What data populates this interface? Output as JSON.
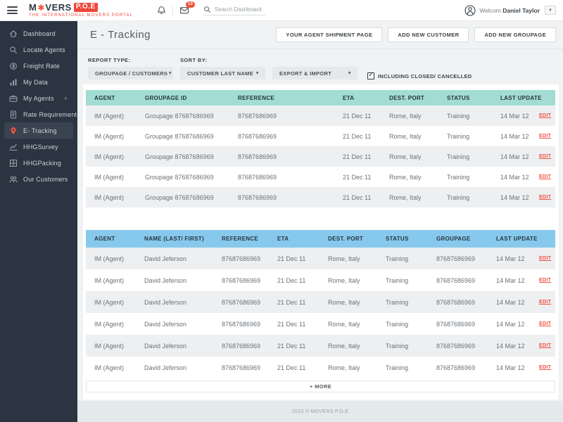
{
  "header": {
    "brand": {
      "part1": "M",
      "part2": "VERS",
      "box": "P.O.E",
      "tagline": "THE INTERNATIONAL MOVERS PORTAL"
    },
    "notifications_badge": "13",
    "search_placeholder": "Search Dashboard",
    "user_greeting": "Welcom",
    "user_name": "Daniel Taylor"
  },
  "sidebar": {
    "items": [
      {
        "label": "Dashboard",
        "icon": "home"
      },
      {
        "label": "Locate Agents",
        "icon": "search"
      },
      {
        "label": "Freight Rate",
        "icon": "coin"
      },
      {
        "label": "My Data",
        "icon": "bar-chart"
      },
      {
        "label": "My Agents",
        "icon": "briefcase",
        "suffix": "+"
      },
      {
        "label": "Rate Requirements",
        "icon": "document"
      },
      {
        "label": "E- Tracking",
        "icon": "map-pin",
        "active": true
      },
      {
        "label": "HHGSurvey",
        "icon": "line-chart"
      },
      {
        "label": "HHGPacking",
        "icon": "package"
      },
      {
        "label": "Our Customers",
        "icon": "people"
      }
    ]
  },
  "page": {
    "title": "E - Tracking",
    "actions": [
      "YOUR AGENT SHIPMENT PAGE",
      "ADD NEW CUSTOMER",
      "ADD NEW GROUPAGE"
    ]
  },
  "filters": {
    "report_type_label": "REPORT TYPE:",
    "report_type_value": "GROUPAGE / CUSTOMERS",
    "sort_by_label": "SORT BY:",
    "sort_by_value": "CUSTOMER LAST NAME",
    "export_import_value": "EXPORT & IMPORT",
    "checkbox_label": "INCLUDING CLOSED/ CANCELLED",
    "checkbox_checked": true
  },
  "groupage_table": {
    "headers": [
      "AGENT",
      "GROUPAGE ID",
      "REFERENCE",
      "ETA",
      "DEST. PORT",
      "STATUS",
      "LAST UPDATE"
    ],
    "edit_label": "EDIT",
    "rows": [
      {
        "agent": "IM (Agent)",
        "groupage_id": "Groupage 87687686969",
        "reference": "87687686969",
        "eta": "21 Dec 11",
        "dest_port": "Rome, Italy",
        "status": "Training",
        "last_update": "14 Mar 12"
      },
      {
        "agent": "IM (Agent)",
        "groupage_id": "Groupage 87687686969",
        "reference": "87687686969",
        "eta": "21 Dec 11",
        "dest_port": "Rome, Italy",
        "status": "Training",
        "last_update": "14 Mar 12"
      },
      {
        "agent": "IM (Agent)",
        "groupage_id": "Groupage 87687686969",
        "reference": "87687686969",
        "eta": "21 Dec 11",
        "dest_port": "Rome, Italy",
        "status": "Training",
        "last_update": "14 Mar 12"
      },
      {
        "agent": "IM (Agent)",
        "groupage_id": "Groupage 87687686969",
        "reference": "87687686969",
        "eta": "21 Dec 11",
        "dest_port": "Rome, Italy",
        "status": "Training",
        "last_update": "14 Mar 12"
      },
      {
        "agent": "IM (Agent)",
        "groupage_id": "Groupage 87687686969",
        "reference": "87687686969",
        "eta": "21 Dec 11",
        "dest_port": "Rome, Italy",
        "status": "Training",
        "last_update": "14 Mar 12"
      }
    ]
  },
  "customer_table": {
    "headers": [
      "AGENT",
      "NAME (LAST/ FIRST)",
      "REFERENCE",
      "ETA",
      "DEST. PORT",
      "STATUS",
      "GROUPAGE",
      "LAST UPDATE"
    ],
    "edit_label": "EDIT",
    "rows": [
      {
        "agent": "IM (Agent)",
        "name": "David Jeferson",
        "reference": "87687686969",
        "eta": "21 Dec 11",
        "dest_port": "Rome, Italy",
        "status": "Training",
        "groupage": "87687686969",
        "last_update": "14 Mar 12"
      },
      {
        "agent": "IM (Agent)",
        "name": "David Jeferson",
        "reference": "87687686969",
        "eta": "21 Dec 11",
        "dest_port": "Rome, Italy",
        "status": "Training",
        "groupage": "87687686969",
        "last_update": "14 Mar 12"
      },
      {
        "agent": "IM (Agent)",
        "name": "David Jeferson",
        "reference": "87687686969",
        "eta": "21 Dec 11",
        "dest_port": "Rome, Italy",
        "status": "Training",
        "groupage": "87687686969",
        "last_update": "14 Mar 12"
      },
      {
        "agent": "IM (Agent)",
        "name": "David Jeferson",
        "reference": "87687686969",
        "eta": "21 Dec 11",
        "dest_port": "Rome, Italy",
        "status": "Training",
        "groupage": "87687686969",
        "last_update": "14 Mar 12"
      },
      {
        "agent": "IM (Agent)",
        "name": "David Jeferson",
        "reference": "87687686969",
        "eta": "21 Dec 11",
        "dest_port": "Rome, Italy",
        "status": "Training",
        "groupage": "87687686969",
        "last_update": "14 Mar 12"
      },
      {
        "agent": "IM (Agent)",
        "name": "David Jeferson",
        "reference": "87687686969",
        "eta": "21 Dec 11",
        "dest_port": "Rome, Italy",
        "status": "Training",
        "groupage": "87687686969",
        "last_update": "14 Mar 12"
      }
    ]
  },
  "more_label": "+ MORE",
  "footer_text": "2013 © MOVERS P.O.E",
  "colors": {
    "accent_red": "#f0513c",
    "teal_header": "#a2dcd2",
    "blue_header": "#87c9ec",
    "sidebar_bg": "#2b3440"
  }
}
